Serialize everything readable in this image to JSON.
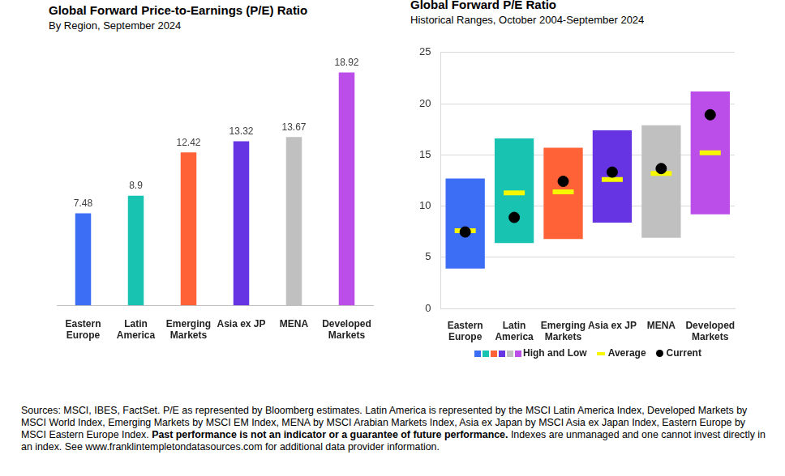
{
  "chart_data": [
    {
      "type": "bar",
      "title": "Global Forward Price-to-Earnings (P/E) Ratio",
      "subtitle": "By Region, September 2024",
      "categories": [
        [
          "Eastern",
          "Europe"
        ],
        [
          "Latin",
          "America"
        ],
        [
          "Emerging",
          "Markets"
        ],
        "Asia ex JP",
        "MENA",
        [
          "Developed",
          "Markets"
        ]
      ],
      "values": [
        7.48,
        8.9,
        12.42,
        13.32,
        13.67,
        18.92
      ],
      "colors": [
        "#3c6df5",
        "#18c3b1",
        "#ff6236",
        "#6634e3",
        "#c0c0c0",
        "#bb4ee8"
      ],
      "ylim": [
        0,
        20
      ],
      "data_labels": true,
      "tick_labels": "x",
      "grid": false
    },
    {
      "type": "range",
      "title": "Global Forward P/E Ratio",
      "subtitle": "Historical Ranges, October 2004-September 2024",
      "categories": [
        [
          "Eastern",
          "Europe"
        ],
        [
          "Latin",
          "America"
        ],
        [
          "Emerging",
          "Markets"
        ],
        "Asia ex JP",
        "MENA",
        [
          "Developed",
          "Markets"
        ]
      ],
      "series": [
        {
          "name": "High and Low",
          "type": "range",
          "low": [
            3.9,
            6.4,
            6.8,
            8.4,
            6.9,
            9.2
          ],
          "high": [
            12.7,
            16.6,
            15.7,
            17.4,
            17.9,
            21.2
          ],
          "colors": [
            "#3c6df5",
            "#18c3b1",
            "#ff6236",
            "#6634e3",
            "#c0c0c0",
            "#bb4ee8"
          ]
        },
        {
          "name": "Average",
          "type": "scatter",
          "marker": "dash",
          "color": "#f7f700",
          "values": [
            7.6,
            11.3,
            11.4,
            12.6,
            13.2,
            15.2
          ]
        },
        {
          "name": "Current",
          "type": "scatter",
          "marker": "circle",
          "color": "#000000",
          "values": [
            7.48,
            8.9,
            12.42,
            13.32,
            13.67,
            18.92
          ]
        }
      ],
      "ylim": [
        0,
        25
      ],
      "yticks": [
        0,
        5,
        10,
        15,
        20,
        25
      ],
      "grid": true,
      "legend": "bottom"
    }
  ],
  "footnote": [
    "Sources: MSCI, IBES, FactSet. P/E as represented by Bloomberg estimates. Latin America is represented by the MSCI Latin America Index, Developed Markets by MSCI World Index, Emerging Markets by MSCI EM Index, MENA by MSCI Arabian Markets Index, Asia ex Japan by MSCI Asia ex Japan Index, Eastern Europe by MSCI Eastern Europe Index. ",
    "Past performance is not an indicator or a guarantee of future performance.",
    " Indexes are unmanaged and one cannot invest directly in an index. See www.franklintempletondatasources.com for additional data provider information."
  ]
}
